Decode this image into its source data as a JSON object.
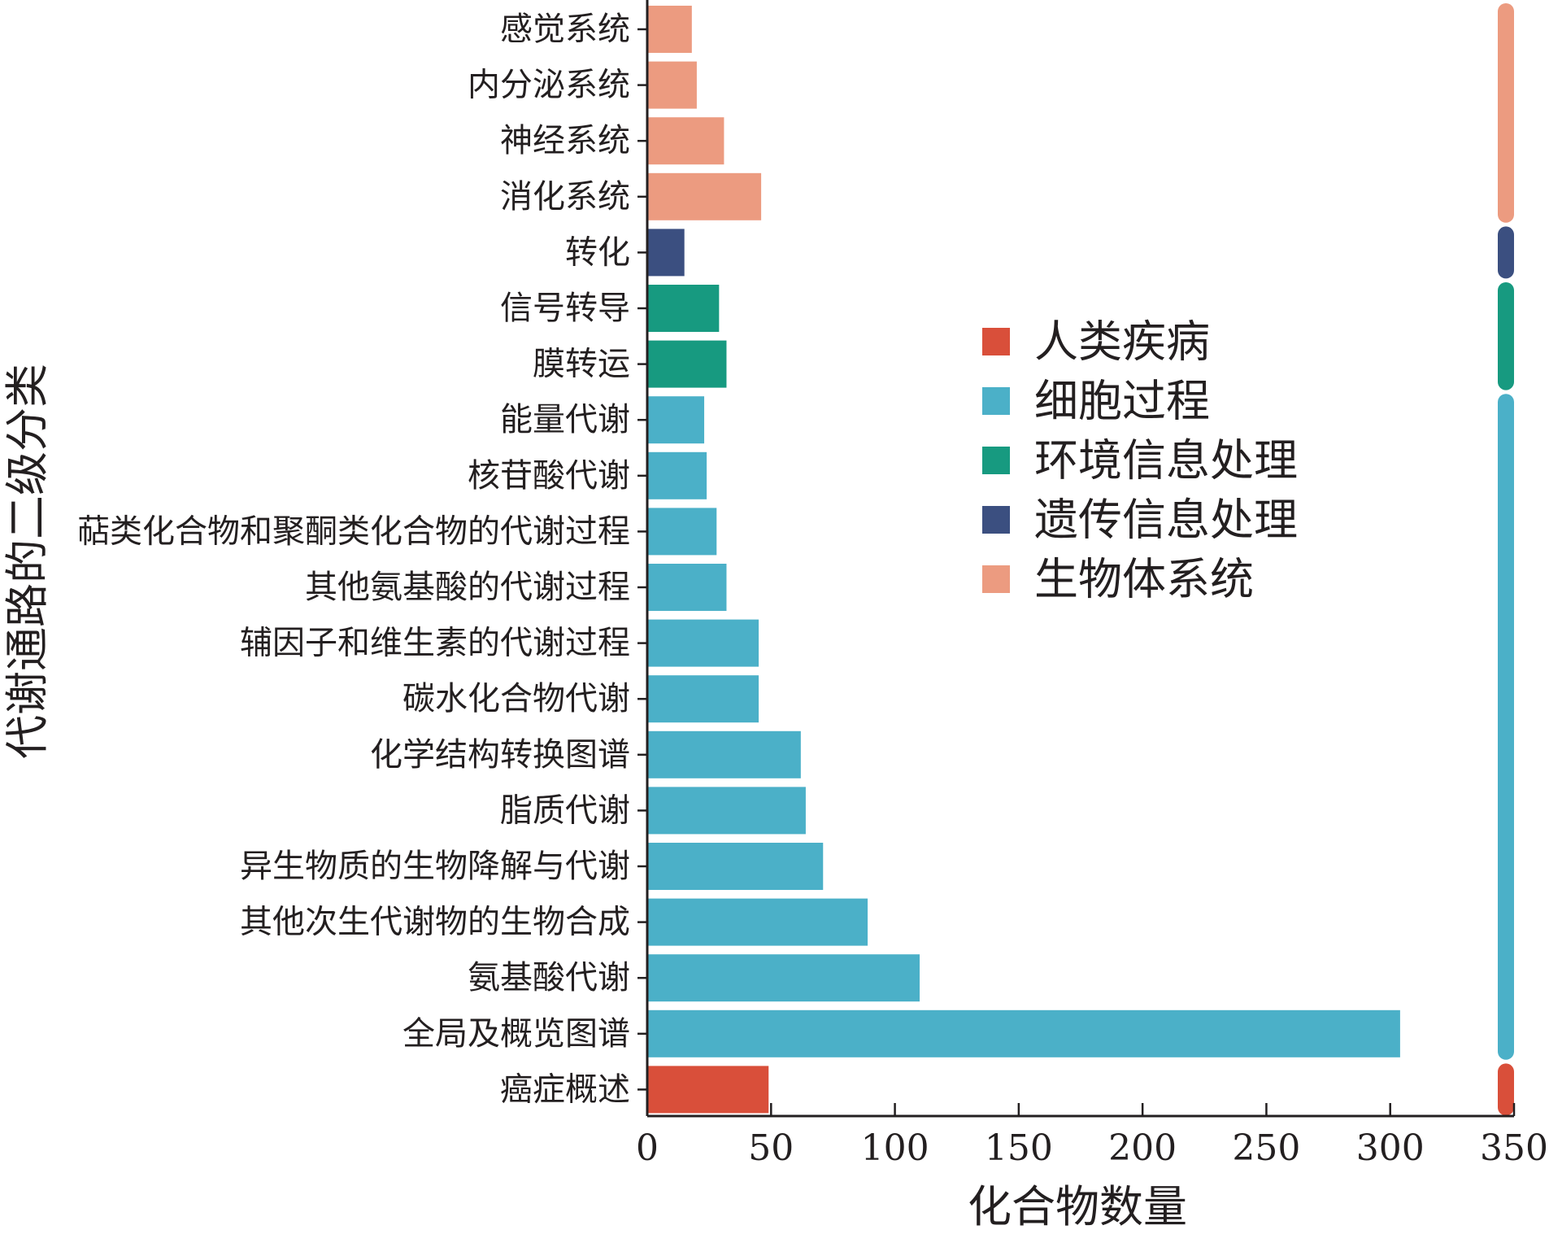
{
  "chart_data": {
    "type": "bar",
    "orientation": "horizontal",
    "xlabel": "化合物数量",
    "ylabel": "代谢通路的二级分类",
    "xlim": [
      0,
      350
    ],
    "xticks": [
      "0",
      "50",
      "100",
      "150",
      "200",
      "250",
      "300",
      "350"
    ],
    "legend_position": "center-right",
    "categories": [
      "感觉系统",
      "内分泌系统",
      "神经系统",
      "消化系统",
      "转化",
      "信号转导",
      "膜转运",
      "能量代谢",
      "核苷酸代谢",
      "萜类化合物和聚酮类化合物的代谢过程",
      "其他氨基酸的代谢过程",
      "辅因子和维生素的代谢过程",
      "碳水化合物代谢",
      "化学结构转换图谱",
      "脂质代谢",
      "异生物质的生物降解与代谢",
      "其他次生代谢物的生物合成",
      "氨基酸代谢",
      "全局及概览图谱",
      "癌症概述"
    ],
    "values": [
      18,
      20,
      31,
      46,
      15,
      29,
      32,
      23,
      24,
      28,
      32,
      45,
      45,
      62,
      64,
      71,
      89,
      110,
      304,
      49
    ],
    "groups": [
      "生物体系统",
      "生物体系统",
      "生物体系统",
      "生物体系统",
      "遗传信息处理",
      "环境信息处理",
      "环境信息处理",
      "细胞过程",
      "细胞过程",
      "细胞过程",
      "细胞过程",
      "细胞过程",
      "细胞过程",
      "细胞过程",
      "细胞过程",
      "细胞过程",
      "细胞过程",
      "细胞过程",
      "细胞过程",
      "人类疾病"
    ],
    "legend": [
      {
        "name": "人类疾病",
        "color": "#d94f3a"
      },
      {
        "name": "细胞过程",
        "color": "#4bb0c8"
      },
      {
        "name": "环境信息处理",
        "color": "#179a80"
      },
      {
        "name": "遗传信息处理",
        "color": "#3b4f80"
      },
      {
        "name": "生物体系统",
        "color": "#ec9b80"
      }
    ]
  }
}
